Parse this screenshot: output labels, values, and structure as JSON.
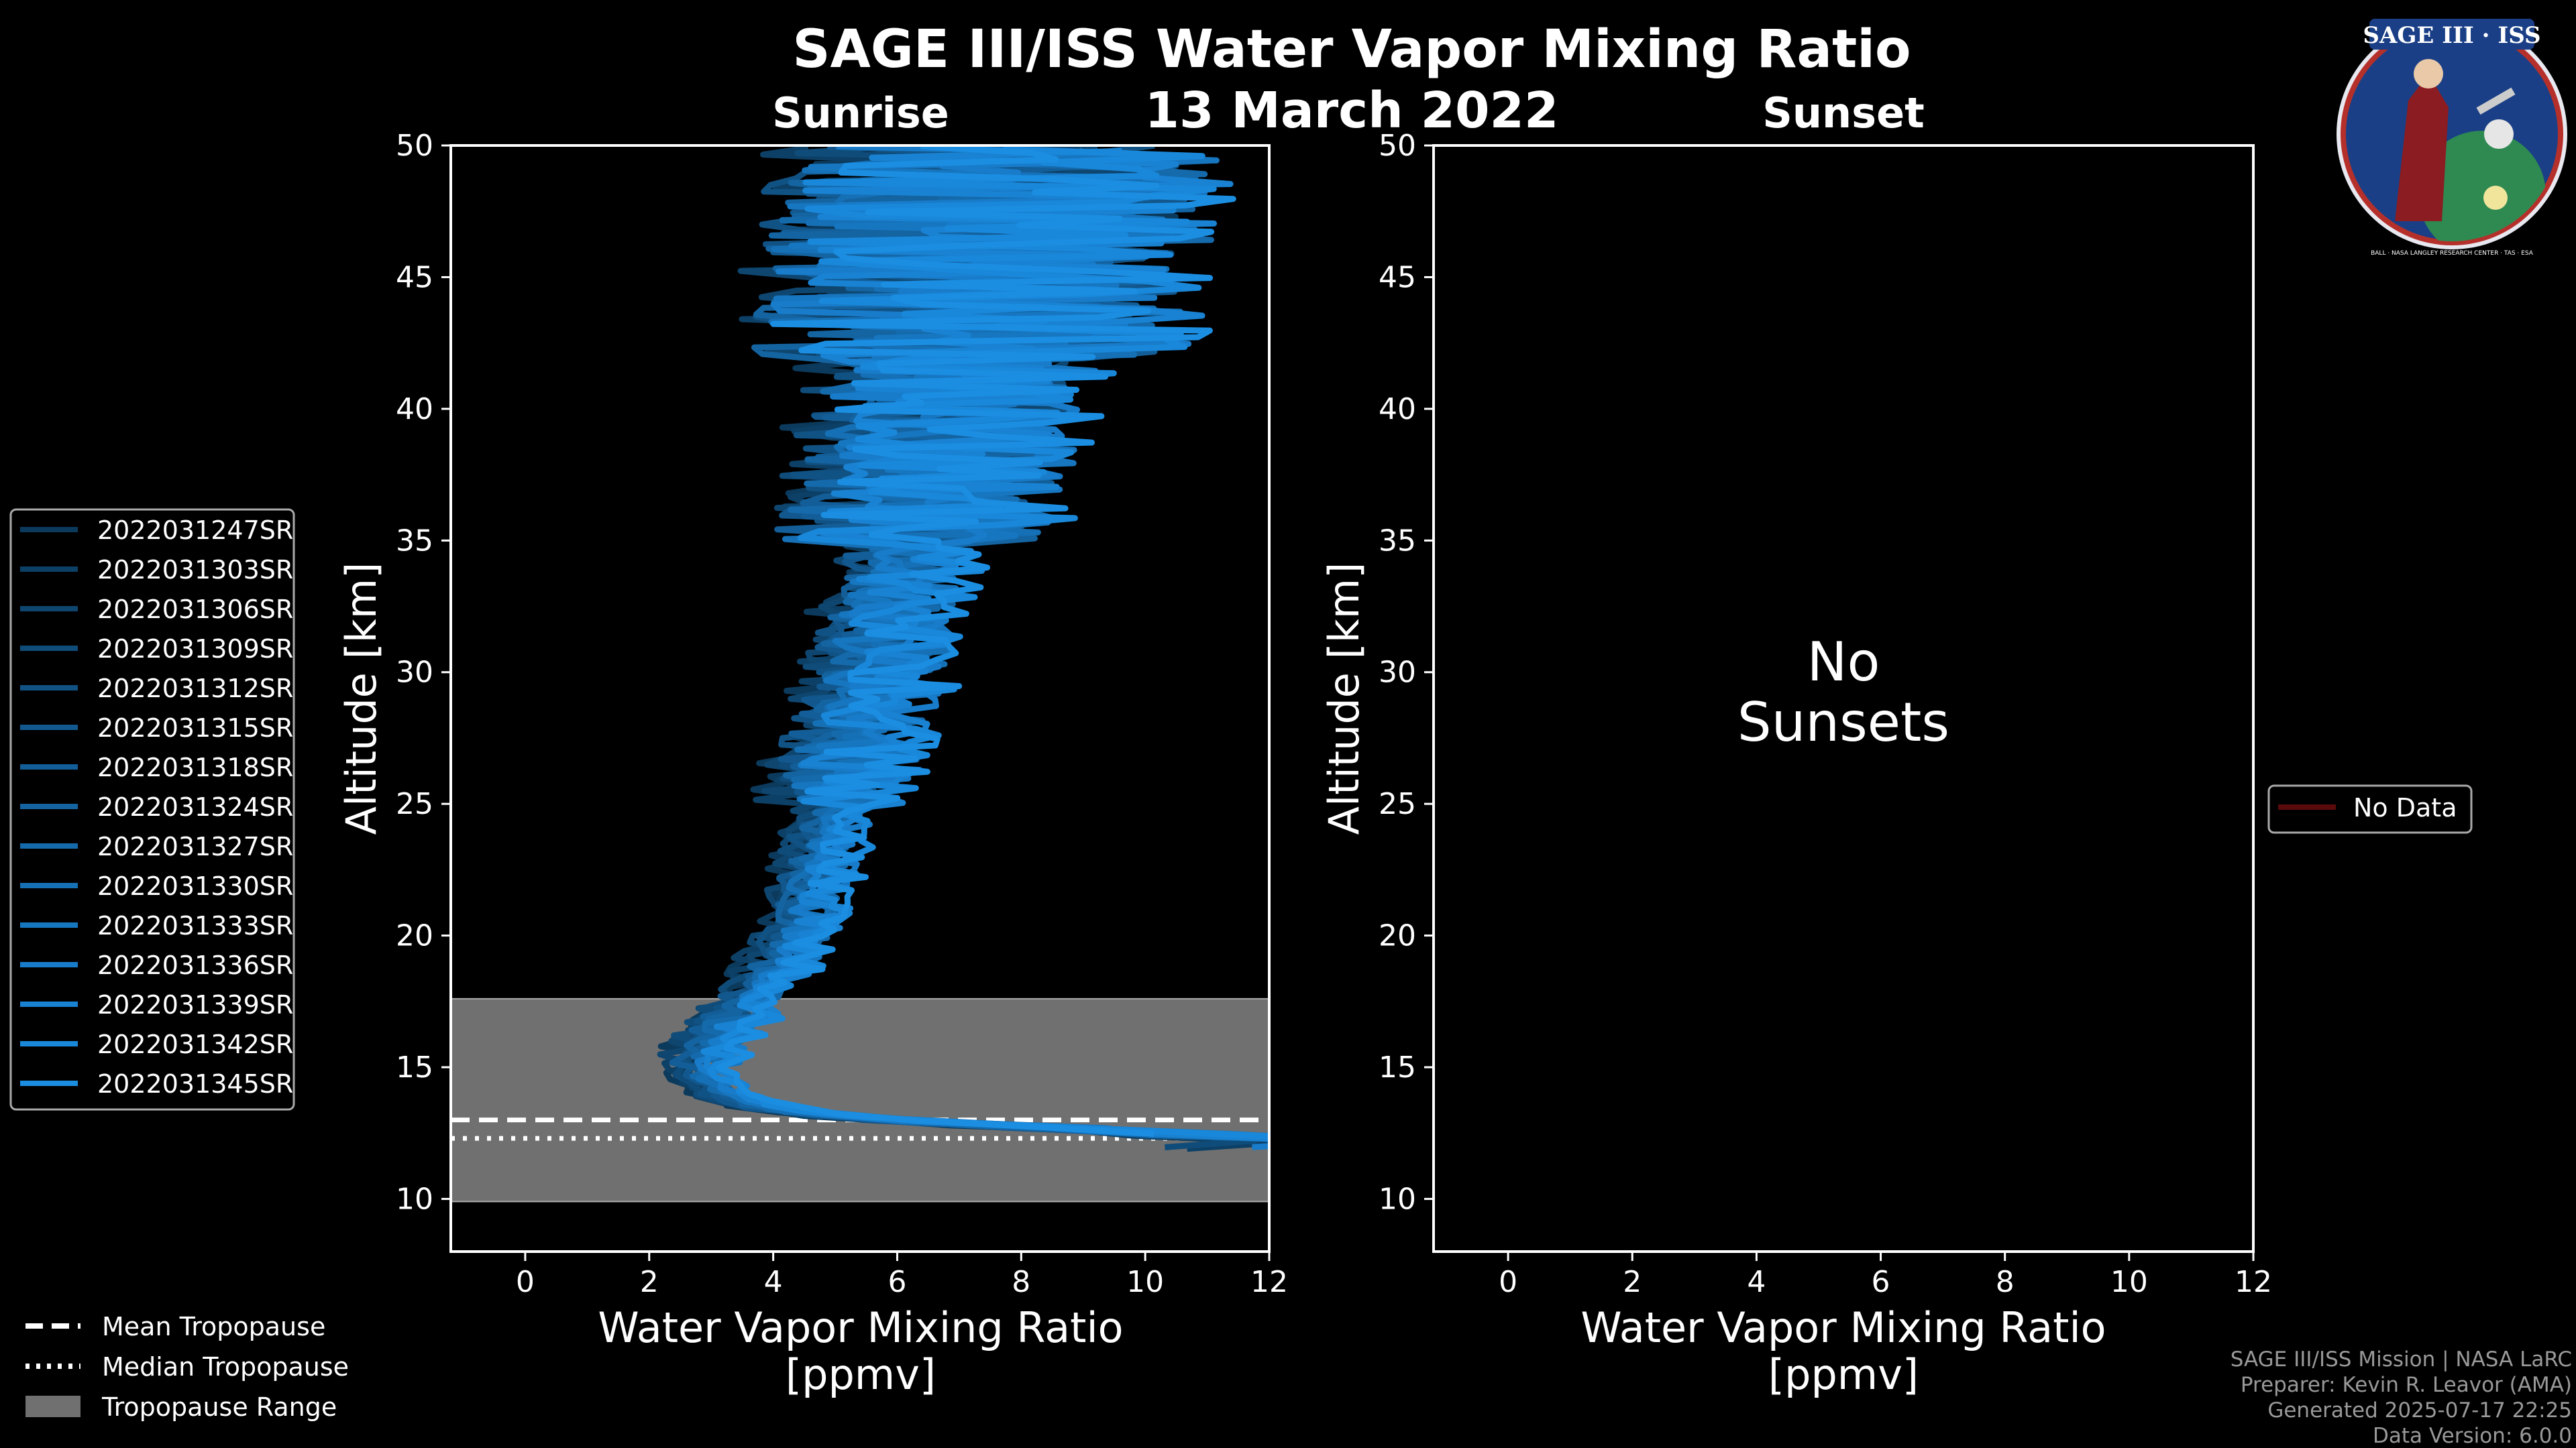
{
  "figure": {
    "title": "SAGE III/ISS Water Vapor Mixing Ratio",
    "date": "13 March 2022"
  },
  "chart_data": [
    {
      "type": "line",
      "panel_title": "Sunrise",
      "xlabel_line1": "Water Vapor Mixing Ratio",
      "xlabel_line2": "[ppmv]",
      "ylabel": "Altitude [km]",
      "xlim": [
        -1.2,
        12
      ],
      "ylim": [
        8,
        50
      ],
      "xticks": [
        0,
        2,
        4,
        6,
        8,
        10,
        12
      ],
      "yticks": [
        10,
        15,
        20,
        25,
        30,
        35,
        40,
        45,
        50
      ],
      "tropopause": {
        "mean": 13.0,
        "median": 12.3,
        "range": [
          9.9,
          17.6
        ]
      },
      "series_names": [
        "2022031247SR",
        "2022031303SR",
        "2022031306SR",
        "2022031309SR",
        "2022031312SR",
        "2022031315SR",
        "2022031318SR",
        "2022031324SR",
        "2022031327SR",
        "2022031330SR",
        "2022031333SR",
        "2022031336SR",
        "2022031339SR",
        "2022031342SR",
        "2022031345SR"
      ],
      "series_colors": [
        "#0b3a5c",
        "#0d4066",
        "#0e4670",
        "#104c7a",
        "#115284",
        "#12588e",
        "#135e98",
        "#1464a2",
        "#156aac",
        "#1670b6",
        "#1776c0",
        "#187cca",
        "#1982d2",
        "#1a88da",
        "#1b8ee2"
      ],
      "profile_template": {
        "altitude": [
          12.0,
          12.5,
          13.0,
          13.5,
          14.0,
          14.5,
          15.0,
          16.0,
          17.0,
          18.0,
          20.0,
          22.0,
          24.0,
          26.0,
          28.0,
          30.0,
          32.0,
          34.0,
          36.0,
          38.0,
          40.0,
          42.0,
          44.0,
          46.0,
          48.0,
          50.0
        ],
        "value": [
          12.0,
          8.0,
          5.0,
          3.8,
          3.2,
          2.9,
          2.8,
          3.0,
          3.4,
          3.8,
          4.4,
          4.6,
          4.9,
          5.1,
          5.4,
          5.7,
          5.9,
          6.1,
          6.4,
          6.6,
          6.8,
          7.0,
          7.2,
          7.4,
          7.6,
          7.8
        ]
      }
    },
    {
      "type": "line",
      "panel_title": "Sunset",
      "xlabel_line1": "Water Vapor Mixing Ratio",
      "xlabel_line2": "[ppmv]",
      "ylabel": "Altitude [km]",
      "xlim": [
        -1.2,
        12
      ],
      "ylim": [
        8,
        50
      ],
      "xticks": [
        0,
        2,
        4,
        6,
        8,
        10,
        12
      ],
      "yticks": [
        10,
        15,
        20,
        25,
        30,
        35,
        40,
        45,
        50
      ],
      "annotation_line1": "No",
      "annotation_line2": "Sunsets",
      "legend_entry": "No Data",
      "legend_color": "#5a0a0a"
    }
  ],
  "tropo_legend": {
    "mean": "Mean Tropopause",
    "median": "Median Tropopause",
    "range": "Tropopause Range"
  },
  "footer": {
    "line1": "SAGE III/ISS Mission | NASA LaRC",
    "line2": "Preparer: Kevin R. Leavor (AMA)",
    "line3": "Generated 2025-07-17 22:25",
    "line4": "Data Version: 6.0.0"
  },
  "logo": {
    "text_top": "SAGE III · ISS",
    "text_bottom": "BALL · NASA LANGLEY RESEARCH CENTER · TAS · ESA"
  }
}
